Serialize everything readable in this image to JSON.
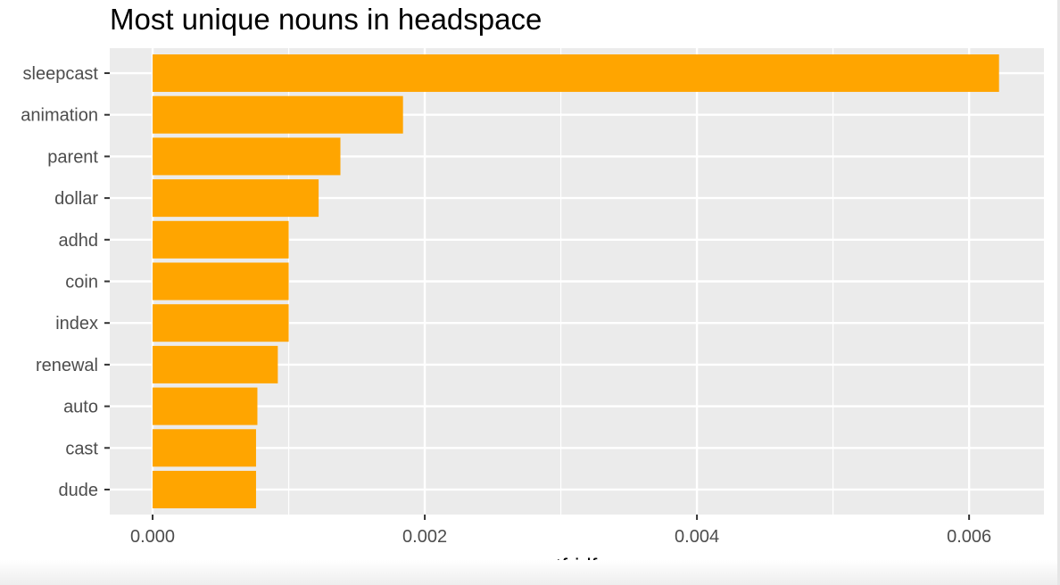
{
  "chart_data": {
    "type": "bar",
    "orientation": "horizontal",
    "title": "Most unique nouns in headspace",
    "xlabel": "tf-idf",
    "ylabel": "",
    "categories": [
      "sleepcast",
      "animation",
      "parent",
      "dollar",
      "adhd",
      "coin",
      "index",
      "renewal",
      "auto",
      "cast",
      "dude"
    ],
    "values": [
      0.00622,
      0.00184,
      0.00138,
      0.00122,
      0.001,
      0.001,
      0.001,
      0.00092,
      0.00077,
      0.00076,
      0.00076
    ],
    "xlim": [
      -0.000315,
      0.00655
    ],
    "xticks": [
      0,
      0.002,
      0.004,
      0.006
    ],
    "xtick_labels": [
      "0.000",
      "0.002",
      "0.004",
      "0.006"
    ],
    "grid": true,
    "legend": "none",
    "colors": {
      "bar": "#FFA500",
      "panel_background": "#EBEBEB",
      "grid": "#FFFFFF"
    }
  }
}
